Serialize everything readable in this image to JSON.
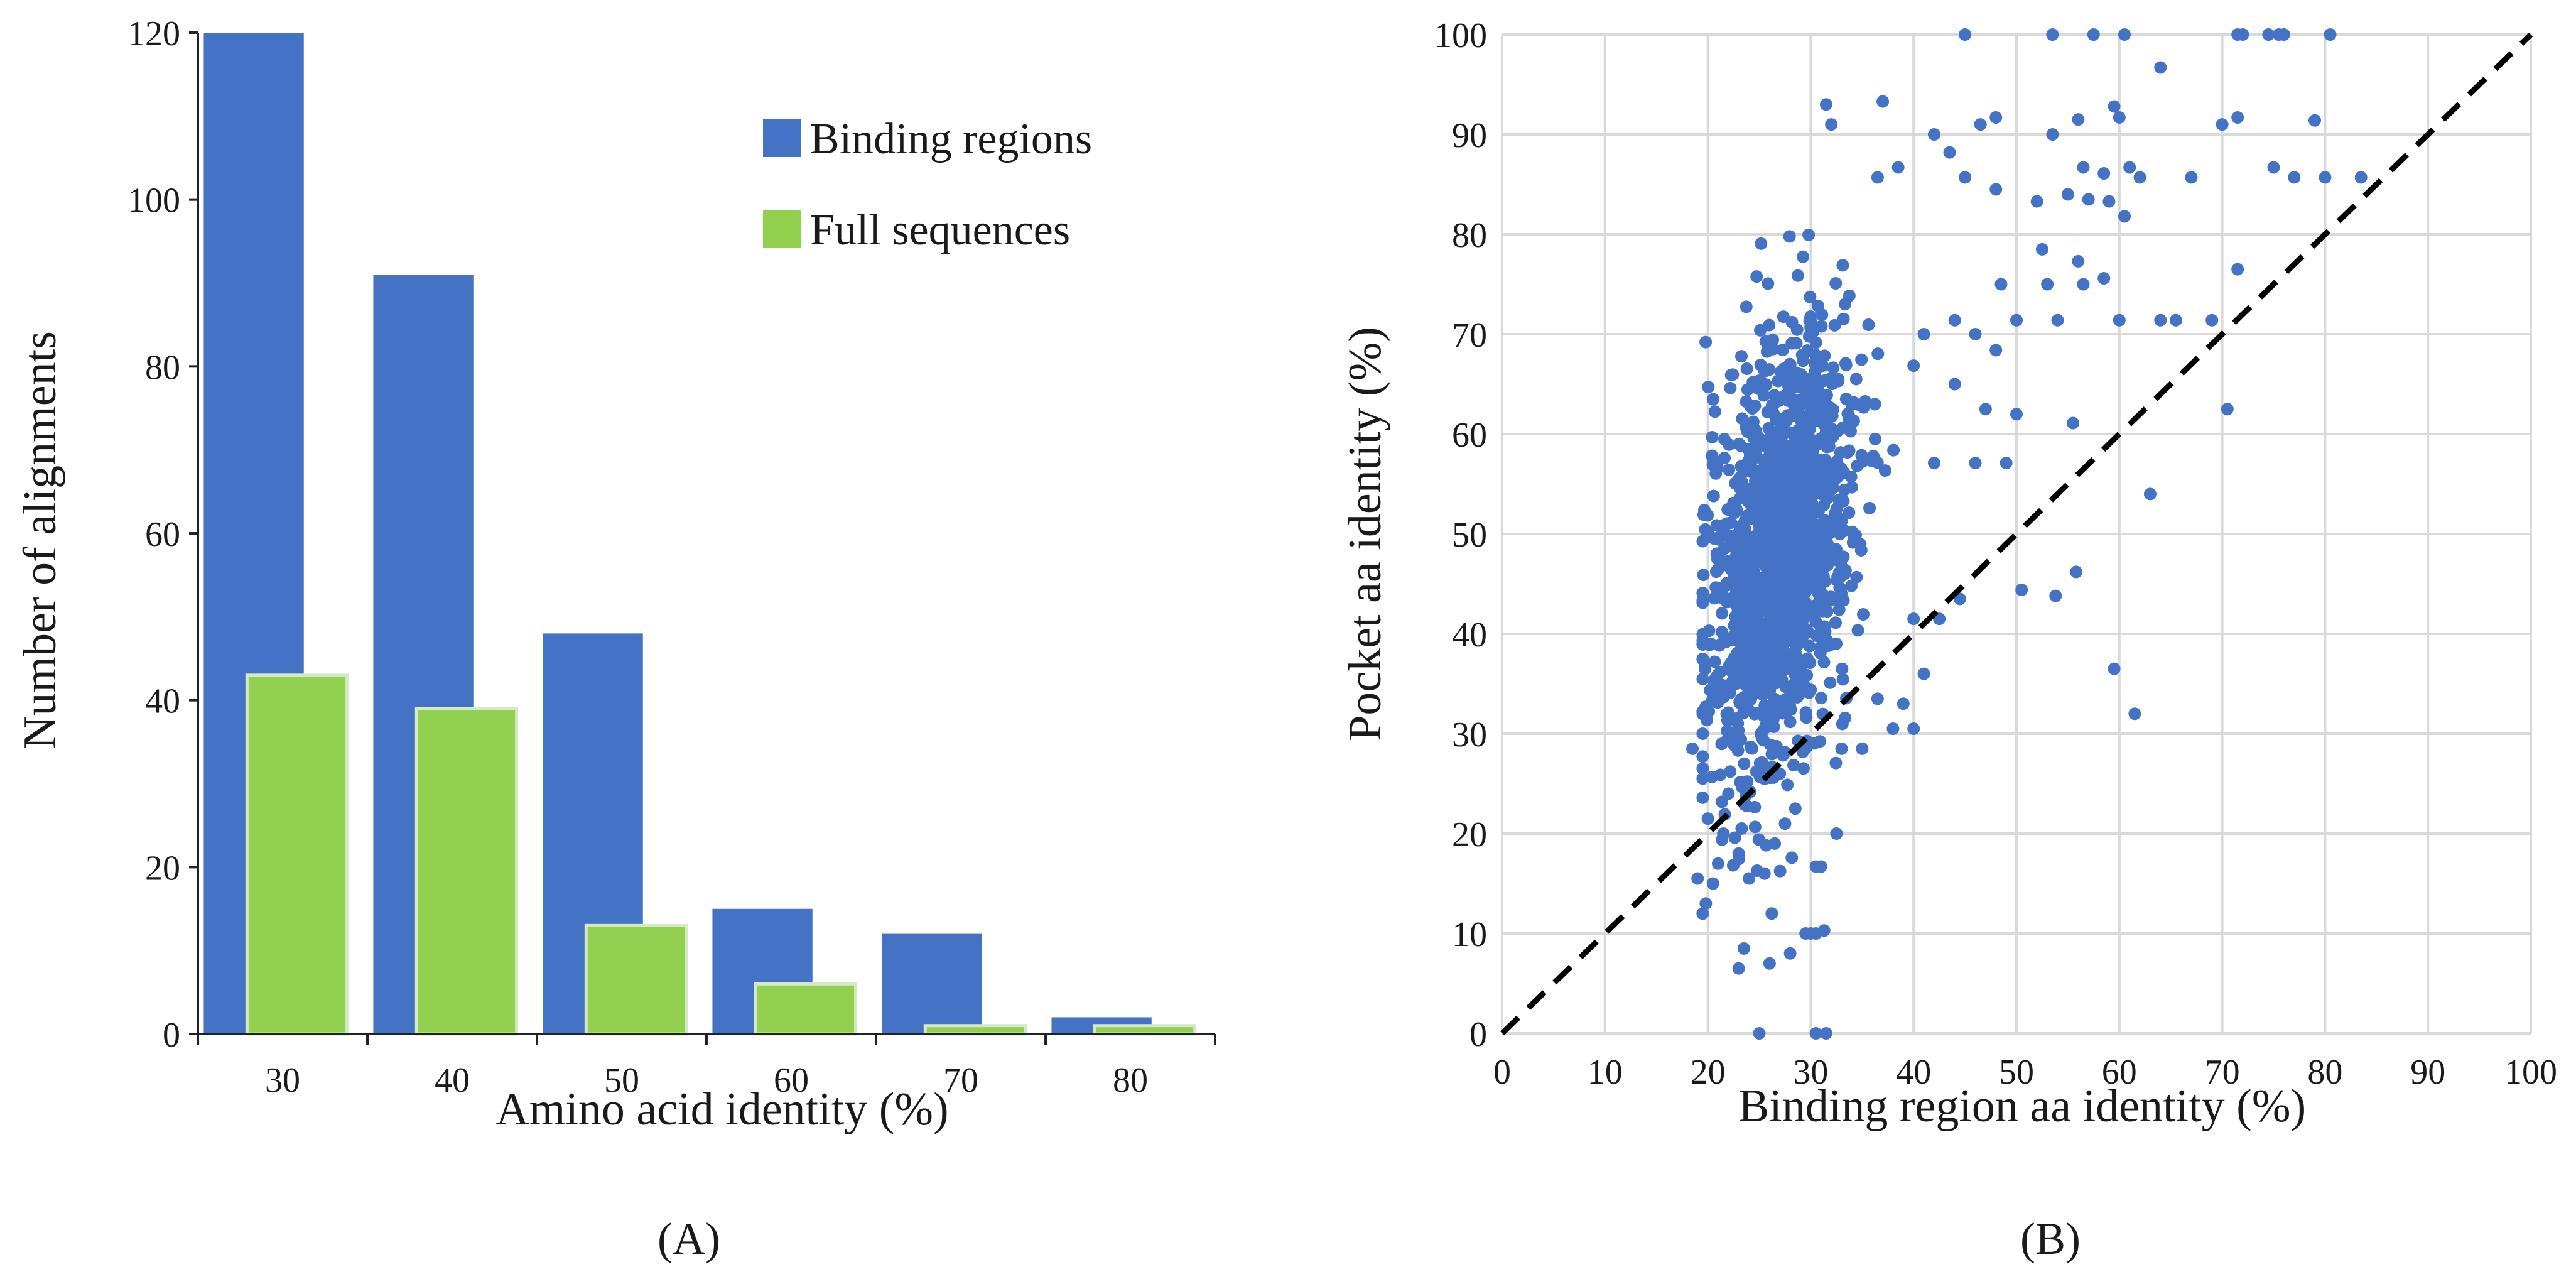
{
  "colors": {
    "binding": "#4472C4",
    "full": "#92D050",
    "full_border": "#d6e9c6",
    "scatter": "#4472C4",
    "diagonal": "#000000"
  },
  "chart_data": [
    {
      "id": "A",
      "type": "bar",
      "panel_label": "(A)",
      "xlabel": "Amino acid identity (%)",
      "ylabel": "Number of alignments",
      "categories": [
        "30",
        "40",
        "50",
        "60",
        "70",
        "80"
      ],
      "ylim": [
        0,
        120
      ],
      "yticks": [
        "0",
        "20",
        "40",
        "60",
        "80",
        "100",
        "120"
      ],
      "legend": {
        "position": "top-right",
        "entries": [
          "Binding regions",
          "Full sequences"
        ]
      },
      "series": [
        {
          "name": "Binding regions",
          "values": [
            120,
            91,
            48,
            15,
            12,
            2
          ]
        },
        {
          "name": "Full sequences",
          "values": [
            43,
            39,
            13,
            6,
            1,
            1
          ]
        }
      ]
    },
    {
      "id": "B",
      "type": "scatter",
      "panel_label": "(B)",
      "xlabel": "Binding region aa identity (%)",
      "ylabel": "Pocket aa identity (%)",
      "xlim": [
        0,
        100
      ],
      "ylim": [
        0,
        100
      ],
      "xticks": [
        "0",
        "10",
        "20",
        "30",
        "40",
        "50",
        "60",
        "70",
        "80",
        "90",
        "100"
      ],
      "yticks": [
        "0",
        "10",
        "20",
        "30",
        "40",
        "50",
        "60",
        "70",
        "80",
        "90",
        "100"
      ],
      "grid": true,
      "reference_line": "y = x (dashed)",
      "cloud": {
        "approx_points": 1450,
        "x_mean": 27,
        "x_sd": 3.5,
        "y_mean": 48,
        "y_sd": 10,
        "seed": 7
      },
      "points": [
        [
          45,
          100
        ],
        [
          53.5,
          100
        ],
        [
          57.5,
          100
        ],
        [
          60.5,
          100
        ],
        [
          71.5,
          100
        ],
        [
          72,
          100
        ],
        [
          74.5,
          100
        ],
        [
          75.5,
          100
        ],
        [
          76,
          100
        ],
        [
          80.5,
          100
        ],
        [
          64,
          96.7
        ],
        [
          31.5,
          93
        ],
        [
          37,
          93.3
        ],
        [
          48,
          91.7
        ],
        [
          46.5,
          91
        ],
        [
          56,
          91.5
        ],
        [
          59.5,
          92.8
        ],
        [
          70,
          91
        ],
        [
          71.5,
          91.7
        ],
        [
          79,
          91.4
        ],
        [
          53.5,
          90
        ],
        [
          60,
          91.7
        ],
        [
          42,
          90
        ],
        [
          32,
          91
        ],
        [
          43.5,
          88.2
        ],
        [
          56.5,
          86.7
        ],
        [
          58.5,
          86.1
        ],
        [
          75,
          86.7
        ],
        [
          77,
          85.7
        ],
        [
          80,
          85.7
        ],
        [
          83.5,
          85.7
        ],
        [
          61,
          86.7
        ],
        [
          62,
          85.7
        ],
        [
          67,
          85.7
        ],
        [
          38.5,
          86.7
        ],
        [
          36.5,
          85.7
        ],
        [
          45,
          85.7
        ],
        [
          48,
          84.5
        ],
        [
          52,
          83.3
        ],
        [
          55,
          84
        ],
        [
          57,
          83.5
        ],
        [
          59,
          83.3
        ],
        [
          60.5,
          81.8
        ],
        [
          52.5,
          78.5
        ],
        [
          56,
          77.3
        ],
        [
          58.5,
          75.6
        ],
        [
          71.5,
          76.5
        ],
        [
          48.5,
          75
        ],
        [
          53,
          75
        ],
        [
          56.5,
          75
        ],
        [
          50,
          71.4
        ],
        [
          54,
          71.4
        ],
        [
          60,
          71.4
        ],
        [
          64,
          71.4
        ],
        [
          65.5,
          71.4
        ],
        [
          69,
          71.4
        ],
        [
          70.5,
          62.5
        ],
        [
          41,
          70
        ],
        [
          44,
          71.4
        ],
        [
          46,
          70
        ],
        [
          48,
          68.4
        ],
        [
          44,
          65
        ],
        [
          47,
          62.5
        ],
        [
          50,
          62
        ],
        [
          49,
          57.1
        ],
        [
          46,
          57.1
        ],
        [
          42,
          57.1
        ],
        [
          55.5,
          61.1
        ],
        [
          63,
          54
        ],
        [
          55.8,
          46.2
        ],
        [
          53.8,
          43.8
        ],
        [
          50.5,
          44.4
        ],
        [
          59.5,
          36.5
        ],
        [
          61.5,
          32
        ],
        [
          44.5,
          43.5
        ],
        [
          42.5,
          41.5
        ],
        [
          40,
          41.5
        ],
        [
          39,
          33
        ],
        [
          40,
          30.5
        ],
        [
          41,
          36
        ],
        [
          38,
          30.5
        ],
        [
          36.5,
          33.5
        ],
        [
          35,
          28.5
        ],
        [
          33,
          28.5
        ],
        [
          32.5,
          20
        ],
        [
          30.5,
          16.7
        ],
        [
          31,
          16.7
        ],
        [
          30,
          10
        ],
        [
          30.5,
          10
        ],
        [
          31.3,
          10.3
        ],
        [
          29.5,
          10
        ],
        [
          28,
          8
        ],
        [
          26,
          7
        ],
        [
          23,
          6.5
        ],
        [
          23.5,
          8.5
        ],
        [
          25,
          0
        ],
        [
          30.5,
          0
        ],
        [
          31.5,
          0
        ],
        [
          19,
          15.5
        ],
        [
          19.8,
          13
        ],
        [
          20.5,
          15
        ],
        [
          21,
          17
        ],
        [
          18.5,
          28.5
        ],
        [
          19.5,
          30
        ],
        [
          20,
          21.5
        ],
        [
          21.5,
          20
        ],
        [
          22,
          24
        ],
        [
          23,
          18
        ],
        [
          24,
          15.5
        ],
        [
          25.5,
          16
        ],
        [
          26.5,
          19
        ],
        [
          27.5,
          21
        ],
        [
          28.5,
          22.5
        ],
        [
          27,
          26
        ]
      ]
    }
  ]
}
